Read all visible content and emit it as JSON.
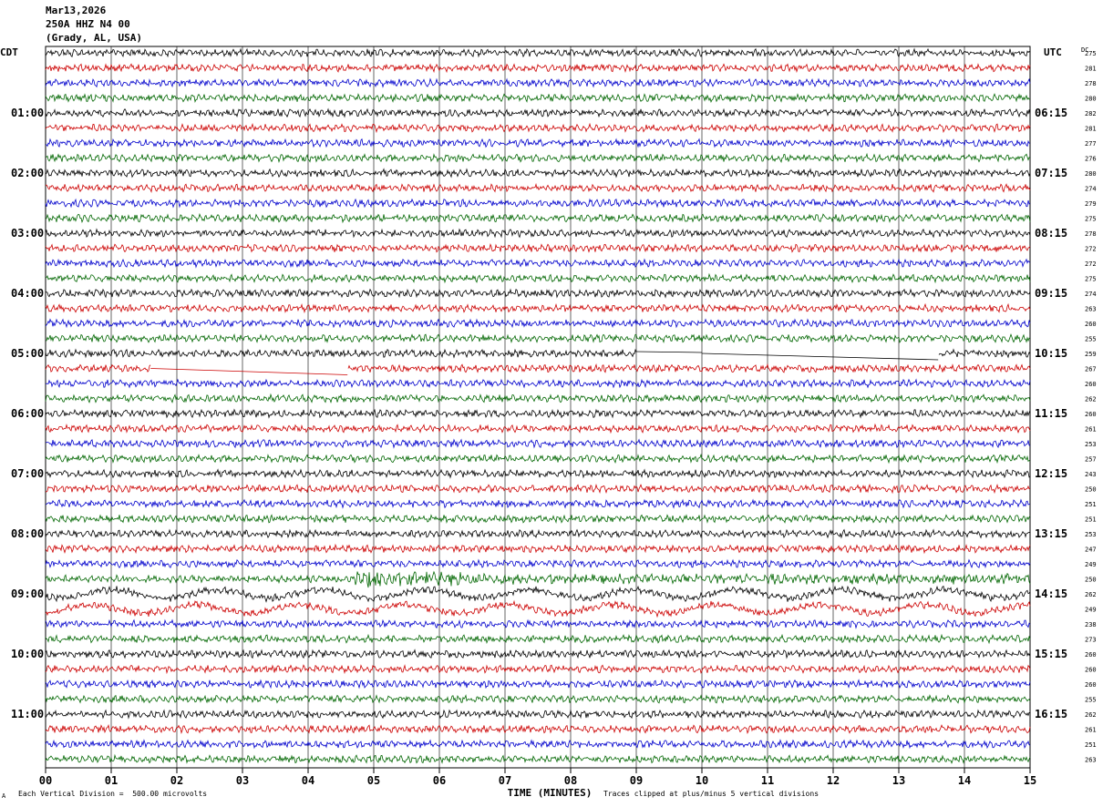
{
  "header": {
    "date": "Mar13,2026",
    "station": "250A HHZ N4 00",
    "location": "(Grady, AL, USA)"
  },
  "footer": {
    "scale_note": "Each Vertical Division =  500.00 microvolts",
    "clip_note": "Traces clipped at plus/minus 5 vertical divisions",
    "corner_mark": "A"
  },
  "colors": {
    "trace_cycle": [
      "#000000",
      "#cc0000",
      "#0000cc",
      "#006600"
    ],
    "grid": "#000000"
  },
  "chart_data": {
    "type": "line",
    "title": "",
    "xlabel": "TIME (MINUTES)",
    "left_axis_label": "CDT",
    "right_axis_label": "UTC",
    "dc_label": "DC",
    "xlim": [
      0,
      15
    ],
    "x_ticks": [
      "00",
      "01",
      "02",
      "03",
      "04",
      "05",
      "06",
      "07",
      "08",
      "09",
      "10",
      "11",
      "12",
      "13",
      "14",
      "15"
    ],
    "rows": 48,
    "rows_per_hour": 4,
    "grid": true,
    "left_hour_labels": [
      "01:00",
      "02:00",
      "03:00",
      "04:00",
      "05:00",
      "06:00",
      "07:00",
      "08:00",
      "09:00",
      "10:00",
      "11:00"
    ],
    "right_hour_labels": [
      "06:15",
      "07:15",
      "08:15",
      "09:15",
      "10:15",
      "11:15",
      "12:15",
      "13:15",
      "14:15",
      "15:15",
      "16:15"
    ],
    "dc_values": [
      275,
      281,
      278,
      280,
      282,
      281,
      277,
      276,
      280,
      274,
      279,
      275,
      278,
      272,
      272,
      275,
      274,
      263,
      260,
      255,
      259,
      267,
      260,
      262,
      260,
      261,
      253,
      257,
      243,
      250,
      251,
      251,
      253,
      247,
      249,
      250,
      262,
      249,
      238,
      273,
      260,
      260,
      260,
      255,
      262,
      261,
      251,
      263
    ],
    "notable_events": [
      {
        "row": 35,
        "start_min": 4.7,
        "end_min": 15,
        "description": "high-frequency burst"
      },
      {
        "row": 36,
        "start_min": 0,
        "end_min": 15,
        "description": "long-period waves"
      },
      {
        "row": 37,
        "start_min": 0,
        "end_min": 15,
        "description": "long-period waves"
      },
      {
        "row": 20,
        "start_min": 9.0,
        "end_min": 10.0,
        "description": "data gap"
      },
      {
        "row": 20,
        "start_min": 10.0,
        "end_min": 13.6,
        "description": "data gap"
      },
      {
        "row": 21,
        "start_min": 1.6,
        "end_min": 4.6,
        "description": "data gap"
      }
    ]
  }
}
